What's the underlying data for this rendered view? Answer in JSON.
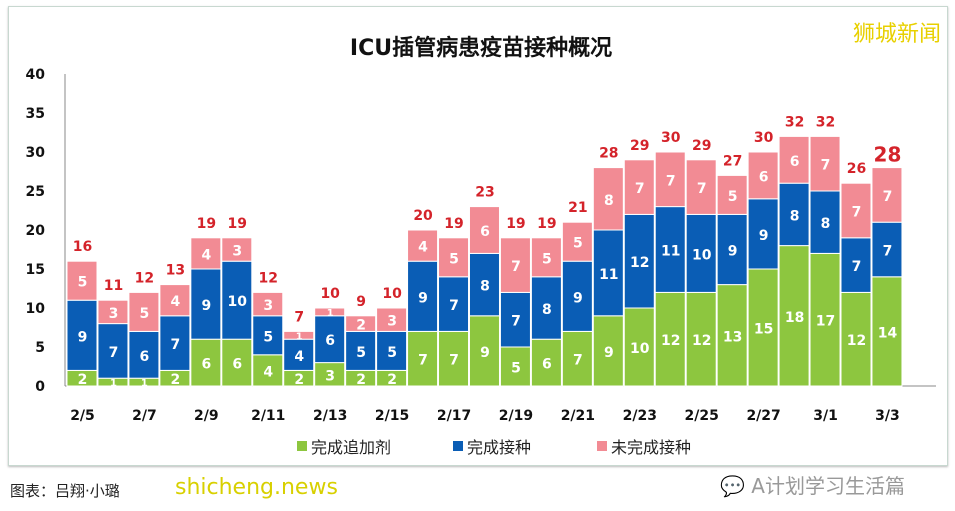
{
  "chart_data": {
    "type": "bar",
    "stacked": true,
    "title": "ICU插管病患疫苗接种概况",
    "categories": [
      "2/5",
      "2/6",
      "2/7",
      "2/8",
      "2/9",
      "2/10",
      "2/11",
      "2/12",
      "2/13",
      "2/14",
      "2/15",
      "2/16",
      "2/17",
      "2/18",
      "2/19",
      "2/20",
      "2/21",
      "2/22",
      "2/23",
      "2/24",
      "2/25",
      "2/26",
      "2/27",
      "2/28",
      "3/1",
      "3/2",
      "3/3"
    ],
    "tick_labels": [
      "2/5",
      "2/7",
      "2/9",
      "2/11",
      "2/13",
      "2/15",
      "2/17",
      "2/19",
      "2/21",
      "2/23",
      "2/25",
      "2/27",
      "3/1",
      "3/3"
    ],
    "series": [
      {
        "name": "完成追加剂",
        "color": "#8dc63f",
        "values": [
          2,
          1,
          1,
          2,
          6,
          6,
          4,
          2,
          3,
          2,
          2,
          7,
          7,
          9,
          5,
          6,
          7,
          9,
          10,
          12,
          12,
          13,
          15,
          18,
          17,
          12,
          14
        ]
      },
      {
        "name": "完成接种",
        "color": "#0a5db5",
        "values": [
          9,
          7,
          6,
          7,
          9,
          10,
          5,
          4,
          6,
          5,
          5,
          9,
          7,
          8,
          7,
          8,
          9,
          11,
          12,
          11,
          10,
          9,
          9,
          8,
          8,
          7,
          7
        ]
      },
      {
        "name": "未完成接种",
        "color": "#f28b94",
        "values": [
          5,
          3,
          5,
          4,
          4,
          3,
          3,
          1,
          1,
          2,
          3,
          4,
          5,
          6,
          7,
          5,
          5,
          8,
          7,
          7,
          7,
          5,
          6,
          6,
          7,
          7,
          7
        ]
      }
    ],
    "totals": [
      16,
      11,
      12,
      13,
      19,
      19,
      12,
      7,
      10,
      9,
      10,
      20,
      19,
      23,
      19,
      19,
      21,
      28,
      29,
      30,
      29,
      27,
      30,
      32,
      32,
      26,
      28
    ],
    "ylim": [
      0,
      40
    ],
    "yticks": [
      0,
      5,
      10,
      15,
      20,
      25,
      30,
      35,
      40
    ],
    "grid": false,
    "legend": "bottom",
    "total_color": "#d4232a"
  },
  "watermarks": {
    "brand": "狮城新闻",
    "source": "图表：吕翔·小璐",
    "site": "shicheng.news",
    "wechat": "A计划学习生活篇"
  }
}
